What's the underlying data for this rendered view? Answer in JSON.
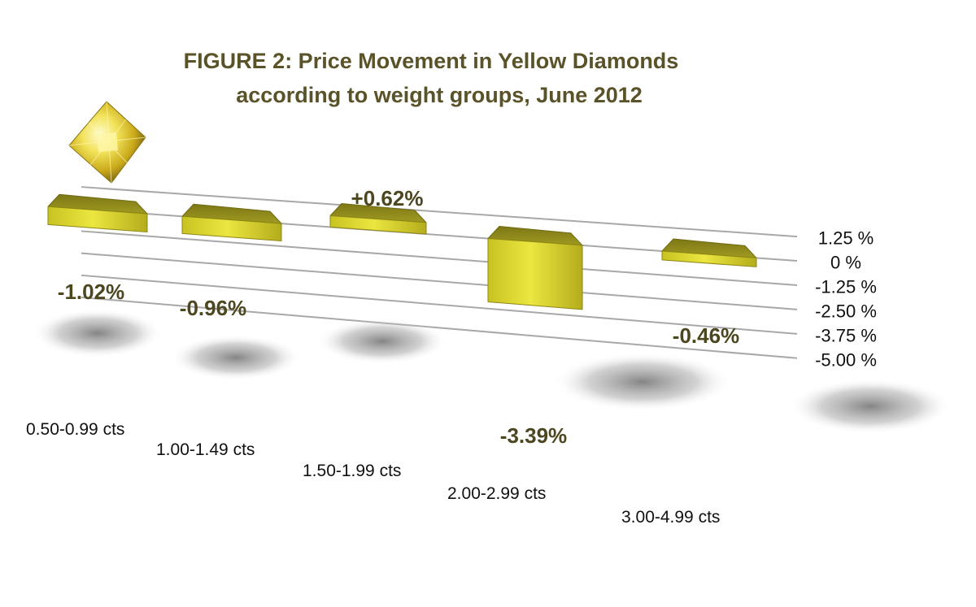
{
  "chart_data": {
    "type": "bar",
    "title": "FIGURE 2: Price Movement in Yellow Diamonds",
    "subtitle": "according to weight groups, June 2012",
    "categories": [
      "0.50-0.99 cts",
      "1.00-1.49 cts",
      "1.50-1.99 cts",
      "2.00-2.99 cts",
      "3.00-4.99 cts"
    ],
    "values": [
      -1.02,
      -0.96,
      0.62,
      -3.39,
      -0.46
    ],
    "data_labels": [
      "-1.02%",
      "-0.96%",
      "+0.62%",
      "-3.39%",
      "-0.46%"
    ],
    "y_ticks": [
      1.25,
      0,
      -1.25,
      -2.5,
      -3.75,
      -5.0
    ],
    "y_tick_labels": [
      "1.25 %",
      "0 %",
      "-1.25 %",
      "-2.50 %",
      "-3.75 %",
      "-5.00 %"
    ],
    "ylim": [
      -5.0,
      1.25
    ],
    "grid": true,
    "legend": "none",
    "style": "3d-perspective",
    "colors": {
      "bar_front": "#dcd62a",
      "bar_top": "#8c8519",
      "bar_side": "#a59e1e",
      "title": "#5a5228",
      "data_label": "#4d4720",
      "gridline": "#a8a8a8"
    },
    "decoration": "yellow-diamond-icon"
  }
}
